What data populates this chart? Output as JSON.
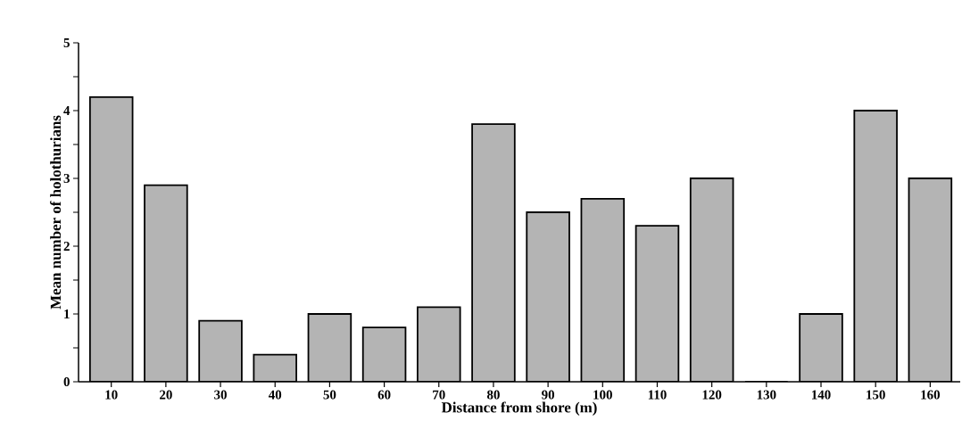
{
  "chart_data": {
    "type": "bar",
    "xlabel": "Distance from shore (m)",
    "ylabel": "Mean number of holothurians",
    "categories": [
      "10",
      "20",
      "30",
      "40",
      "50",
      "60",
      "70",
      "80",
      "90",
      "100",
      "110",
      "120",
      "130",
      "140",
      "150",
      "160"
    ],
    "values": [
      4.2,
      2.9,
      0.9,
      0.4,
      1.0,
      0.8,
      1.1,
      3.8,
      2.5,
      2.7,
      2.3,
      3.0,
      0,
      1.0,
      4.0,
      3.0
    ],
    "color": "#b4b4b4",
    "ylim": [
      0,
      5
    ],
    "yticks": [
      0,
      {
        "value": 0.5,
        "label": null
      },
      1,
      {
        "value": 1.5,
        "label": null
      },
      2,
      {
        "value": 2.5,
        "label": null
      },
      3,
      {
        "value": 3.5,
        "label": null
      },
      4,
      {
        "value": 4.5,
        "label": null
      },
      5
    ],
    "line_style": "solid"
  }
}
